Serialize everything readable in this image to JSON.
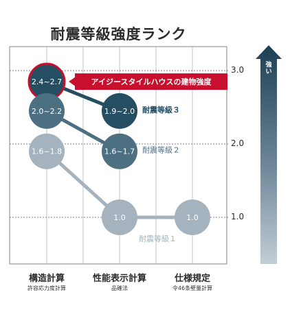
{
  "title": "耐震等級強度ランク",
  "chart_data": {
    "type": "scatter",
    "categories": [
      {
        "label": "構造計算",
        "sublabel": "許容応力度計算"
      },
      {
        "label": "性能表示計算",
        "sublabel": "品確法"
      },
      {
        "label": "仕様規定",
        "sublabel": "令46条壁量計算"
      }
    ],
    "yticks": [
      "3.0",
      "2.0",
      "1.0"
    ],
    "ylim": [
      0.4,
      3.4
    ],
    "grid": true,
    "arrow_label": "強い",
    "series": [
      {
        "name": "耐震等級３",
        "color": "#264e62",
        "points": [
          {
            "x": 0,
            "y": 2.85,
            "label": "2.4~2.7"
          },
          {
            "x": 1,
            "y": 2.45,
            "label": "1.9~2.0"
          }
        ]
      },
      {
        "name": "耐震等級２",
        "color": "#4d6f82",
        "points": [
          {
            "x": 0,
            "y": 2.45,
            "label": "2.0~2.2"
          },
          {
            "x": 1,
            "y": 1.9,
            "label": "1.6~1.7"
          }
        ]
      },
      {
        "name": "耐震等級１",
        "color": "#a4b3bd",
        "points": [
          {
            "x": 0,
            "y": 1.9,
            "label": "1.6~1.8"
          },
          {
            "x": 1,
            "y": 1.0,
            "label": "1.0"
          },
          {
            "x": 2,
            "y": 1.0,
            "label": "1.0"
          }
        ]
      }
    ],
    "annotation": {
      "text": "アイジースタイルハウスの建物強度",
      "color": "#c8102e",
      "target_series": 0,
      "target_point": 0
    }
  }
}
